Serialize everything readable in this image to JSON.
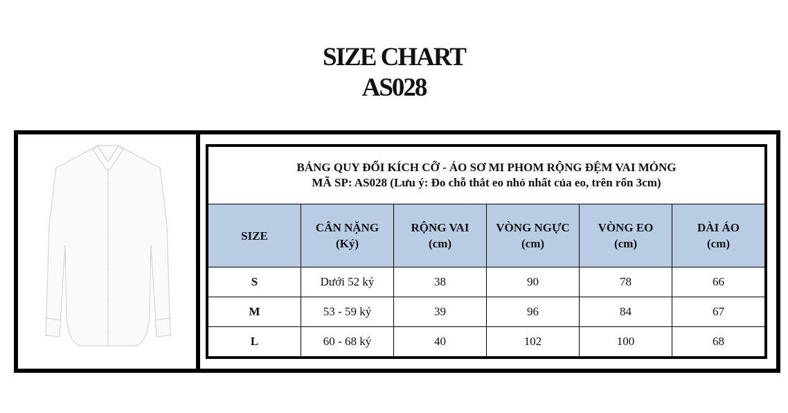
{
  "heading": {
    "line1": "SIZE CHART",
    "line2": "AS028"
  },
  "table": {
    "caption1": "BẢNG QUY ĐỔI KÍCH CỠ - ÁO SƠ MI PHOM RỘNG ĐỆM VAI MỎNG",
    "caption2": "MÃ SP: AS028 (Lưu ý: Đo chỗ thắt eo nhỏ nhất của eo, trên rốn 3cm)",
    "header_color": "#b8cce4",
    "columns": [
      {
        "title": "SIZE",
        "unit": ""
      },
      {
        "title": "CÂN NẶNG",
        "unit": "(Ký)"
      },
      {
        "title": "RỘNG VAI",
        "unit": "(cm)"
      },
      {
        "title": "VÒNG NGỰC",
        "unit": "(cm)"
      },
      {
        "title": "VÒNG EO",
        "unit": "(cm)"
      },
      {
        "title": "DÀI ÁO",
        "unit": "(cm)"
      }
    ],
    "rows": [
      [
        "S",
        "Dưới 52 ký",
        "38",
        "90",
        "78",
        "66"
      ],
      [
        "M",
        "53 - 59 ký",
        "39",
        "96",
        "84",
        "67"
      ],
      [
        "L",
        "60 - 68 ký",
        "40",
        "102",
        "100",
        "68"
      ]
    ]
  },
  "product_image": {
    "icon": "white-shirt-photo"
  }
}
